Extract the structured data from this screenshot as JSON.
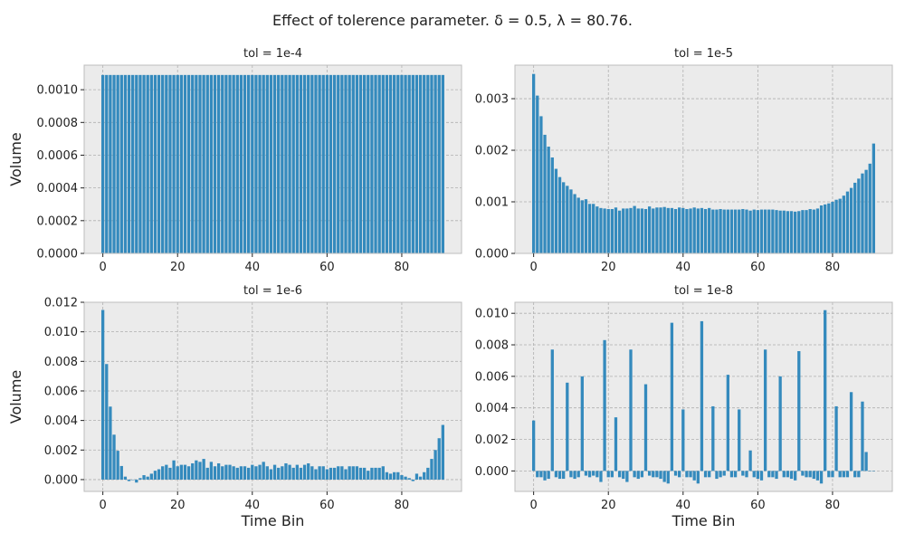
{
  "figure": {
    "title": "Effect of tolerence parameter. δ = 0.5, λ = 80.76.",
    "bar_color": "#348abd",
    "panel_bg": "#ebebeb",
    "grid_color": "#b0b0b0"
  },
  "chart_data": [
    {
      "type": "bar",
      "title": "tol = 1e-4",
      "xlabel": "",
      "ylabel": "Volume",
      "xlim": [
        -5,
        96
      ],
      "ylim": [
        0,
        0.00115
      ],
      "xticks": [
        0,
        20,
        40,
        60,
        80
      ],
      "yticks": [
        0,
        0.0002,
        0.0004,
        0.0006,
        0.0008,
        0.001
      ],
      "ytick_labels": [
        "0.0000",
        "0.0002",
        "0.0004",
        "0.0006",
        "0.0008",
        "0.0010"
      ],
      "grid": true,
      "x": [
        0,
        1,
        2,
        3,
        4,
        5,
        6,
        7,
        8,
        9,
        10,
        11,
        12,
        13,
        14,
        15,
        16,
        17,
        18,
        19,
        20,
        21,
        22,
        23,
        24,
        25,
        26,
        27,
        28,
        29,
        30,
        31,
        32,
        33,
        34,
        35,
        36,
        37,
        38,
        39,
        40,
        41,
        42,
        43,
        44,
        45,
        46,
        47,
        48,
        49,
        50,
        51,
        52,
        53,
        54,
        55,
        56,
        57,
        58,
        59,
        60,
        61,
        62,
        63,
        64,
        65,
        66,
        67,
        68,
        69,
        70,
        71,
        72,
        73,
        74,
        75,
        76,
        77,
        78,
        79,
        80,
        81,
        82,
        83,
        84,
        85,
        86,
        87,
        88,
        89,
        90,
        91
      ],
      "values": [
        0.00109,
        0.00109,
        0.00109,
        0.00109,
        0.00109,
        0.00109,
        0.00109,
        0.00109,
        0.00109,
        0.00109,
        0.00109,
        0.00109,
        0.00109,
        0.00109,
        0.00109,
        0.00109,
        0.00109,
        0.00109,
        0.00109,
        0.00109,
        0.00109,
        0.00109,
        0.00109,
        0.00109,
        0.00109,
        0.00109,
        0.00109,
        0.00109,
        0.00109,
        0.00109,
        0.00109,
        0.00109,
        0.00109,
        0.00109,
        0.00109,
        0.00109,
        0.00109,
        0.00109,
        0.00109,
        0.00109,
        0.00109,
        0.00109,
        0.00109,
        0.00109,
        0.00109,
        0.00109,
        0.00109,
        0.00109,
        0.00109,
        0.00109,
        0.00109,
        0.00109,
        0.00109,
        0.00109,
        0.00109,
        0.00109,
        0.00109,
        0.00109,
        0.00109,
        0.00109,
        0.00109,
        0.00109,
        0.00109,
        0.00109,
        0.00109,
        0.00109,
        0.00109,
        0.00109,
        0.00109,
        0.00109,
        0.00109,
        0.00109,
        0.00109,
        0.00109,
        0.00109,
        0.00109,
        0.00109,
        0.00109,
        0.00109,
        0.00109,
        0.00109,
        0.00109,
        0.00109,
        0.00109,
        0.00109,
        0.00109,
        0.00109,
        0.00109,
        0.00109,
        0.00109,
        0.00109,
        0.00109
      ]
    },
    {
      "type": "bar",
      "title": "tol = 1e-5",
      "xlabel": "",
      "ylabel": "",
      "xlim": [
        -5,
        96
      ],
      "ylim": [
        0,
        0.00365
      ],
      "xticks": [
        0,
        20,
        40,
        60,
        80
      ],
      "yticks": [
        0,
        0.001,
        0.002,
        0.003
      ],
      "ytick_labels": [
        "0.000",
        "0.001",
        "0.002",
        "0.003"
      ],
      "grid": true,
      "x": [
        0,
        1,
        2,
        3,
        4,
        5,
        6,
        7,
        8,
        9,
        10,
        11,
        12,
        13,
        14,
        15,
        16,
        17,
        18,
        19,
        20,
        21,
        22,
        23,
        24,
        25,
        26,
        27,
        28,
        29,
        30,
        31,
        32,
        33,
        34,
        35,
        36,
        37,
        38,
        39,
        40,
        41,
        42,
        43,
        44,
        45,
        46,
        47,
        48,
        49,
        50,
        51,
        52,
        53,
        54,
        55,
        56,
        57,
        58,
        59,
        60,
        61,
        62,
        63,
        64,
        65,
        66,
        67,
        68,
        69,
        70,
        71,
        72,
        73,
        74,
        75,
        76,
        77,
        78,
        79,
        80,
        81,
        82,
        83,
        84,
        85,
        86,
        87,
        88,
        89,
        90,
        91
      ],
      "values": [
        0.00348,
        0.00306,
        0.00266,
        0.0023,
        0.00207,
        0.00186,
        0.00164,
        0.00148,
        0.00138,
        0.00131,
        0.00124,
        0.00115,
        0.00108,
        0.00103,
        0.00105,
        0.00096,
        0.00096,
        0.00091,
        0.00088,
        0.00087,
        0.00086,
        0.00086,
        0.00089,
        0.00083,
        0.00087,
        0.00087,
        0.00088,
        0.00092,
        0.00087,
        0.00087,
        0.00086,
        0.00091,
        0.00087,
        0.00089,
        0.00089,
        0.0009,
        0.00088,
        0.00088,
        0.00086,
        0.00089,
        0.00088,
        0.00086,
        0.00087,
        0.00089,
        0.00087,
        0.00088,
        0.00086,
        0.00088,
        0.00085,
        0.00085,
        0.00086,
        0.00085,
        0.00085,
        0.00085,
        0.00085,
        0.00085,
        0.00086,
        0.00085,
        0.00083,
        0.00085,
        0.00084,
        0.00085,
        0.00085,
        0.00085,
        0.00085,
        0.00084,
        0.00083,
        0.00083,
        0.00082,
        0.00082,
        0.00081,
        0.00082,
        0.00084,
        0.00084,
        0.00086,
        0.00085,
        0.00087,
        0.00093,
        0.00095,
        0.00097,
        0.001,
        0.00104,
        0.00106,
        0.00112,
        0.0012,
        0.00127,
        0.00137,
        0.00145,
        0.00155,
        0.00162,
        0.00174,
        0.00213
      ]
    },
    {
      "type": "bar",
      "title": "tol = 1e-6",
      "xlabel": "Time Bin",
      "ylabel": "Volume",
      "xlim": [
        -5,
        96
      ],
      "ylim": [
        -0.0008,
        0.012
      ],
      "xticks": [
        0,
        20,
        40,
        60,
        80
      ],
      "yticks": [
        0,
        0.002,
        0.004,
        0.006,
        0.008,
        0.01,
        0.012
      ],
      "ytick_labels": [
        "0.000",
        "0.002",
        "0.004",
        "0.006",
        "0.008",
        "0.010",
        "0.012"
      ],
      "grid": true,
      "x": [
        0,
        1,
        2,
        3,
        4,
        5,
        6,
        7,
        8,
        9,
        10,
        11,
        12,
        13,
        14,
        15,
        16,
        17,
        18,
        19,
        20,
        21,
        22,
        23,
        24,
        25,
        26,
        27,
        28,
        29,
        30,
        31,
        32,
        33,
        34,
        35,
        36,
        37,
        38,
        39,
        40,
        41,
        42,
        43,
        44,
        45,
        46,
        47,
        48,
        49,
        50,
        51,
        52,
        53,
        54,
        55,
        56,
        57,
        58,
        59,
        60,
        61,
        62,
        63,
        64,
        65,
        66,
        67,
        68,
        69,
        70,
        71,
        72,
        73,
        74,
        75,
        76,
        77,
        78,
        79,
        80,
        81,
        82,
        83,
        84,
        85,
        86,
        87,
        88,
        89,
        90,
        91
      ],
      "values": [
        0.01148,
        0.00782,
        0.00494,
        0.00304,
        0.00195,
        0.00092,
        0.0002,
        -0.0001,
        0.0,
        -0.0002,
        0.0001,
        0.0003,
        0.0002,
        0.0004,
        0.0006,
        0.0007,
        0.0009,
        0.001,
        0.0008,
        0.0013,
        0.0009,
        0.001,
        0.001,
        0.0009,
        0.0011,
        0.0013,
        0.0012,
        0.0014,
        0.0008,
        0.0012,
        0.0009,
        0.0011,
        0.0009,
        0.001,
        0.001,
        0.0009,
        0.0008,
        0.0009,
        0.0009,
        0.0008,
        0.001,
        0.0009,
        0.001,
        0.0012,
        0.0009,
        0.0007,
        0.001,
        0.0008,
        0.0009,
        0.0011,
        0.001,
        0.0008,
        0.001,
        0.0008,
        0.001,
        0.0011,
        0.0009,
        0.0007,
        0.0009,
        0.0009,
        0.0007,
        0.0008,
        0.0008,
        0.0009,
        0.0009,
        0.0007,
        0.0009,
        0.0009,
        0.0009,
        0.0008,
        0.0008,
        0.0006,
        0.0008,
        0.0008,
        0.0008,
        0.0009,
        0.0005,
        0.0004,
        0.0005,
        0.0005,
        0.0003,
        0.0002,
        0.0001,
        -0.0001,
        0.0004,
        0.0002,
        0.0005,
        0.0008,
        0.0014,
        0.002,
        0.0028,
        0.0037
      ]
    },
    {
      "type": "bar",
      "title": "tol = 1e-8",
      "xlabel": "Time Bin",
      "ylabel": "",
      "xlim": [
        -5,
        96
      ],
      "ylim": [
        -0.0013,
        0.0107
      ],
      "xticks": [
        0,
        20,
        40,
        60,
        80
      ],
      "yticks": [
        0,
        0.002,
        0.004,
        0.006,
        0.008,
        0.01
      ],
      "ytick_labels": [
        "0.000",
        "0.002",
        "0.004",
        "0.006",
        "0.008",
        "0.010"
      ],
      "grid": true,
      "x": [
        0,
        1,
        2,
        3,
        4,
        5,
        6,
        7,
        8,
        9,
        10,
        11,
        12,
        13,
        14,
        15,
        16,
        17,
        18,
        19,
        20,
        21,
        22,
        23,
        24,
        25,
        26,
        27,
        28,
        29,
        30,
        31,
        32,
        33,
        34,
        35,
        36,
        37,
        38,
        39,
        40,
        41,
        42,
        43,
        44,
        45,
        46,
        47,
        48,
        49,
        50,
        51,
        52,
        53,
        54,
        55,
        56,
        57,
        58,
        59,
        60,
        61,
        62,
        63,
        64,
        65,
        66,
        67,
        68,
        69,
        70,
        71,
        72,
        73,
        74,
        75,
        76,
        77,
        78,
        79,
        80,
        81,
        82,
        83,
        84,
        85,
        86,
        87,
        88,
        89,
        90,
        91
      ],
      "values": [
        0.0032,
        -0.0004,
        -0.0004,
        -0.0006,
        -0.0005,
        0.0077,
        -0.0004,
        -0.0005,
        -0.0005,
        0.0056,
        -0.0004,
        -0.0005,
        -0.0004,
        0.006,
        -0.0003,
        -0.0004,
        -0.0003,
        -0.0004,
        -0.0007,
        0.0083,
        -0.0004,
        -0.0004,
        0.0034,
        -0.0004,
        -0.0005,
        -0.0007,
        0.0077,
        -0.0004,
        -0.0005,
        -0.0004,
        0.0055,
        -0.0003,
        -0.0004,
        -0.0004,
        -0.0005,
        -0.0007,
        -0.0008,
        0.0094,
        -0.0003,
        -0.0004,
        0.0039,
        -0.0004,
        -0.0004,
        -0.0006,
        -0.0008,
        0.0095,
        -0.0004,
        -0.0004,
        0.0041,
        -0.0005,
        -0.0004,
        -0.0003,
        0.0061,
        -0.0004,
        -0.0004,
        0.0039,
        -0.0003,
        -0.0004,
        0.0013,
        -0.0004,
        -0.0005,
        -0.0006,
        0.0077,
        -0.0004,
        -0.0004,
        -0.0005,
        0.006,
        -0.0004,
        -0.0004,
        -0.0005,
        -0.0006,
        0.0076,
        -0.0003,
        -0.0004,
        -0.0004,
        -0.0005,
        -0.0006,
        -0.0008,
        0.0102,
        -0.0004,
        -0.0004,
        0.0041,
        -0.0004,
        -0.0004,
        -0.0004,
        0.005,
        -0.0004,
        -0.0004,
        0.0044,
        0.0012,
        0.0,
        0.0
      ]
    }
  ]
}
